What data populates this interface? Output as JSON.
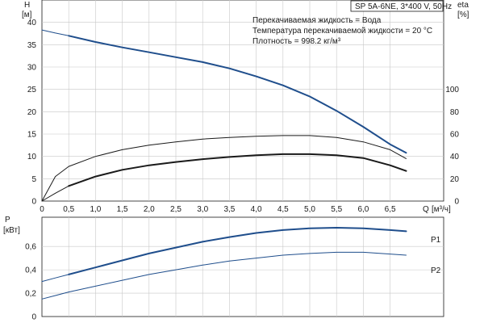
{
  "chart_data": [
    {
      "type": "line",
      "title": "SP 5A-6NE, 3*400 V, 50Hz",
      "info_lines": [
        "Перекачиваемая жидкость = Вода",
        "Температура перекачиваемой жидкости = 20 °C",
        "Плотность = 998.2 кг/м³"
      ],
      "y_label": "H",
      "y_unit": "[м]",
      "y2_label": "eta",
      "y2_unit": "[%]",
      "x_label": "Q",
      "x_unit": "[м³/ч]",
      "xlim": [
        0,
        7.5
      ],
      "ylim": [
        0,
        45
      ],
      "y2lim": [
        0,
        180
      ],
      "x_ticks": [
        "0",
        "0,5",
        "1,0",
        "1,5",
        "2,0",
        "2,5",
        "3,0",
        "3,5",
        "4,0",
        "4,5",
        "5,0",
        "5,5",
        "6,0",
        "6,5"
      ],
      "y_ticks": [
        "0",
        "5",
        "10",
        "15",
        "20",
        "25",
        "30",
        "35",
        "40"
      ],
      "y2_ticks": [
        "0",
        "20",
        "40",
        "60",
        "80",
        "100"
      ],
      "grid": true,
      "series": [
        {
          "key": "head",
          "axis": "y",
          "color": "#1f4e8c",
          "x": [
            0.5,
            1.0,
            1.5,
            2.0,
            2.5,
            3.0,
            3.5,
            4.0,
            4.5,
            5.0,
            5.5,
            6.0,
            6.5,
            6.8
          ],
          "y": [
            37.0,
            35.6,
            34.4,
            33.3,
            32.2,
            31.1,
            29.7,
            27.9,
            25.9,
            23.4,
            20.2,
            16.6,
            12.7,
            10.8
          ]
        },
        {
          "key": "head_extension",
          "axis": "y",
          "color": "#1f4e8c",
          "x": [
            0.0,
            0.25,
            0.5
          ],
          "y": [
            38.3,
            37.6,
            37.0
          ]
        },
        {
          "key": "efficiency_upper",
          "axis": "y2",
          "color": "#1a1a1a",
          "x": [
            0.0,
            0.25,
            0.5,
            1.0,
            1.5,
            2.0,
            2.5,
            3.0,
            3.5,
            4.0,
            4.5,
            5.0,
            5.5,
            6.0,
            6.5,
            6.8
          ],
          "y": [
            0,
            22,
            31,
            40,
            46,
            50,
            53,
            55.5,
            57,
            58,
            58.6,
            58.6,
            57,
            53,
            46,
            38
          ]
        },
        {
          "key": "efficiency_lower",
          "axis": "y2",
          "color": "#1a1a1a",
          "x": [
            0.5,
            1.0,
            1.5,
            2.0,
            2.5,
            3.0,
            3.5,
            4.0,
            4.5,
            5.0,
            5.5,
            6.0,
            6.5,
            6.8
          ],
          "y": [
            13.5,
            22,
            28,
            32,
            35,
            37.5,
            39.5,
            41,
            42,
            42,
            41,
            38.5,
            32,
            27
          ]
        },
        {
          "key": "efficiency_lower_extension",
          "axis": "y2",
          "color": "#1a1a1a",
          "x": [
            0.0,
            0.25,
            0.5
          ],
          "y": [
            0,
            7,
            13.5
          ]
        }
      ]
    },
    {
      "type": "line",
      "y_label": "P",
      "y_unit": "[кВт]",
      "xlim": [
        0,
        7.5
      ],
      "ylim": [
        0,
        0.85
      ],
      "y_ticks": [
        "0",
        "0,2",
        "0,4",
        "0,6"
      ],
      "y_tick_values": [
        0,
        0.2,
        0.4,
        0.6
      ],
      "grid": true,
      "series": [
        {
          "key": "P1",
          "label": "P1",
          "color": "#1f4e8c",
          "x": [
            0.5,
            1.0,
            1.5,
            2.0,
            2.5,
            3.0,
            3.5,
            4.0,
            4.5,
            5.0,
            5.5,
            6.0,
            6.5,
            6.8
          ],
          "y": [
            0.36,
            0.42,
            0.48,
            0.54,
            0.59,
            0.64,
            0.68,
            0.715,
            0.74,
            0.755,
            0.76,
            0.755,
            0.74,
            0.73
          ]
        },
        {
          "key": "P1_extension",
          "color": "#1f4e8c",
          "x": [
            0.0,
            0.25,
            0.5
          ],
          "y": [
            0.3,
            0.33,
            0.36
          ]
        },
        {
          "key": "P2",
          "label": "P2",
          "color": "#1f4e8c",
          "x": [
            0.5,
            1.0,
            1.5,
            2.0,
            2.5,
            3.0,
            3.5,
            4.0,
            4.5,
            5.0,
            5.5,
            6.0,
            6.5,
            6.8
          ],
          "y": [
            0.21,
            0.26,
            0.31,
            0.36,
            0.4,
            0.44,
            0.475,
            0.5,
            0.525,
            0.54,
            0.55,
            0.55,
            0.535,
            0.525
          ]
        },
        {
          "key": "P2_extension",
          "color": "#1f4e8c",
          "x": [
            0.0,
            0.25,
            0.5
          ],
          "y": [
            0.15,
            0.18,
            0.21
          ]
        }
      ]
    }
  ]
}
